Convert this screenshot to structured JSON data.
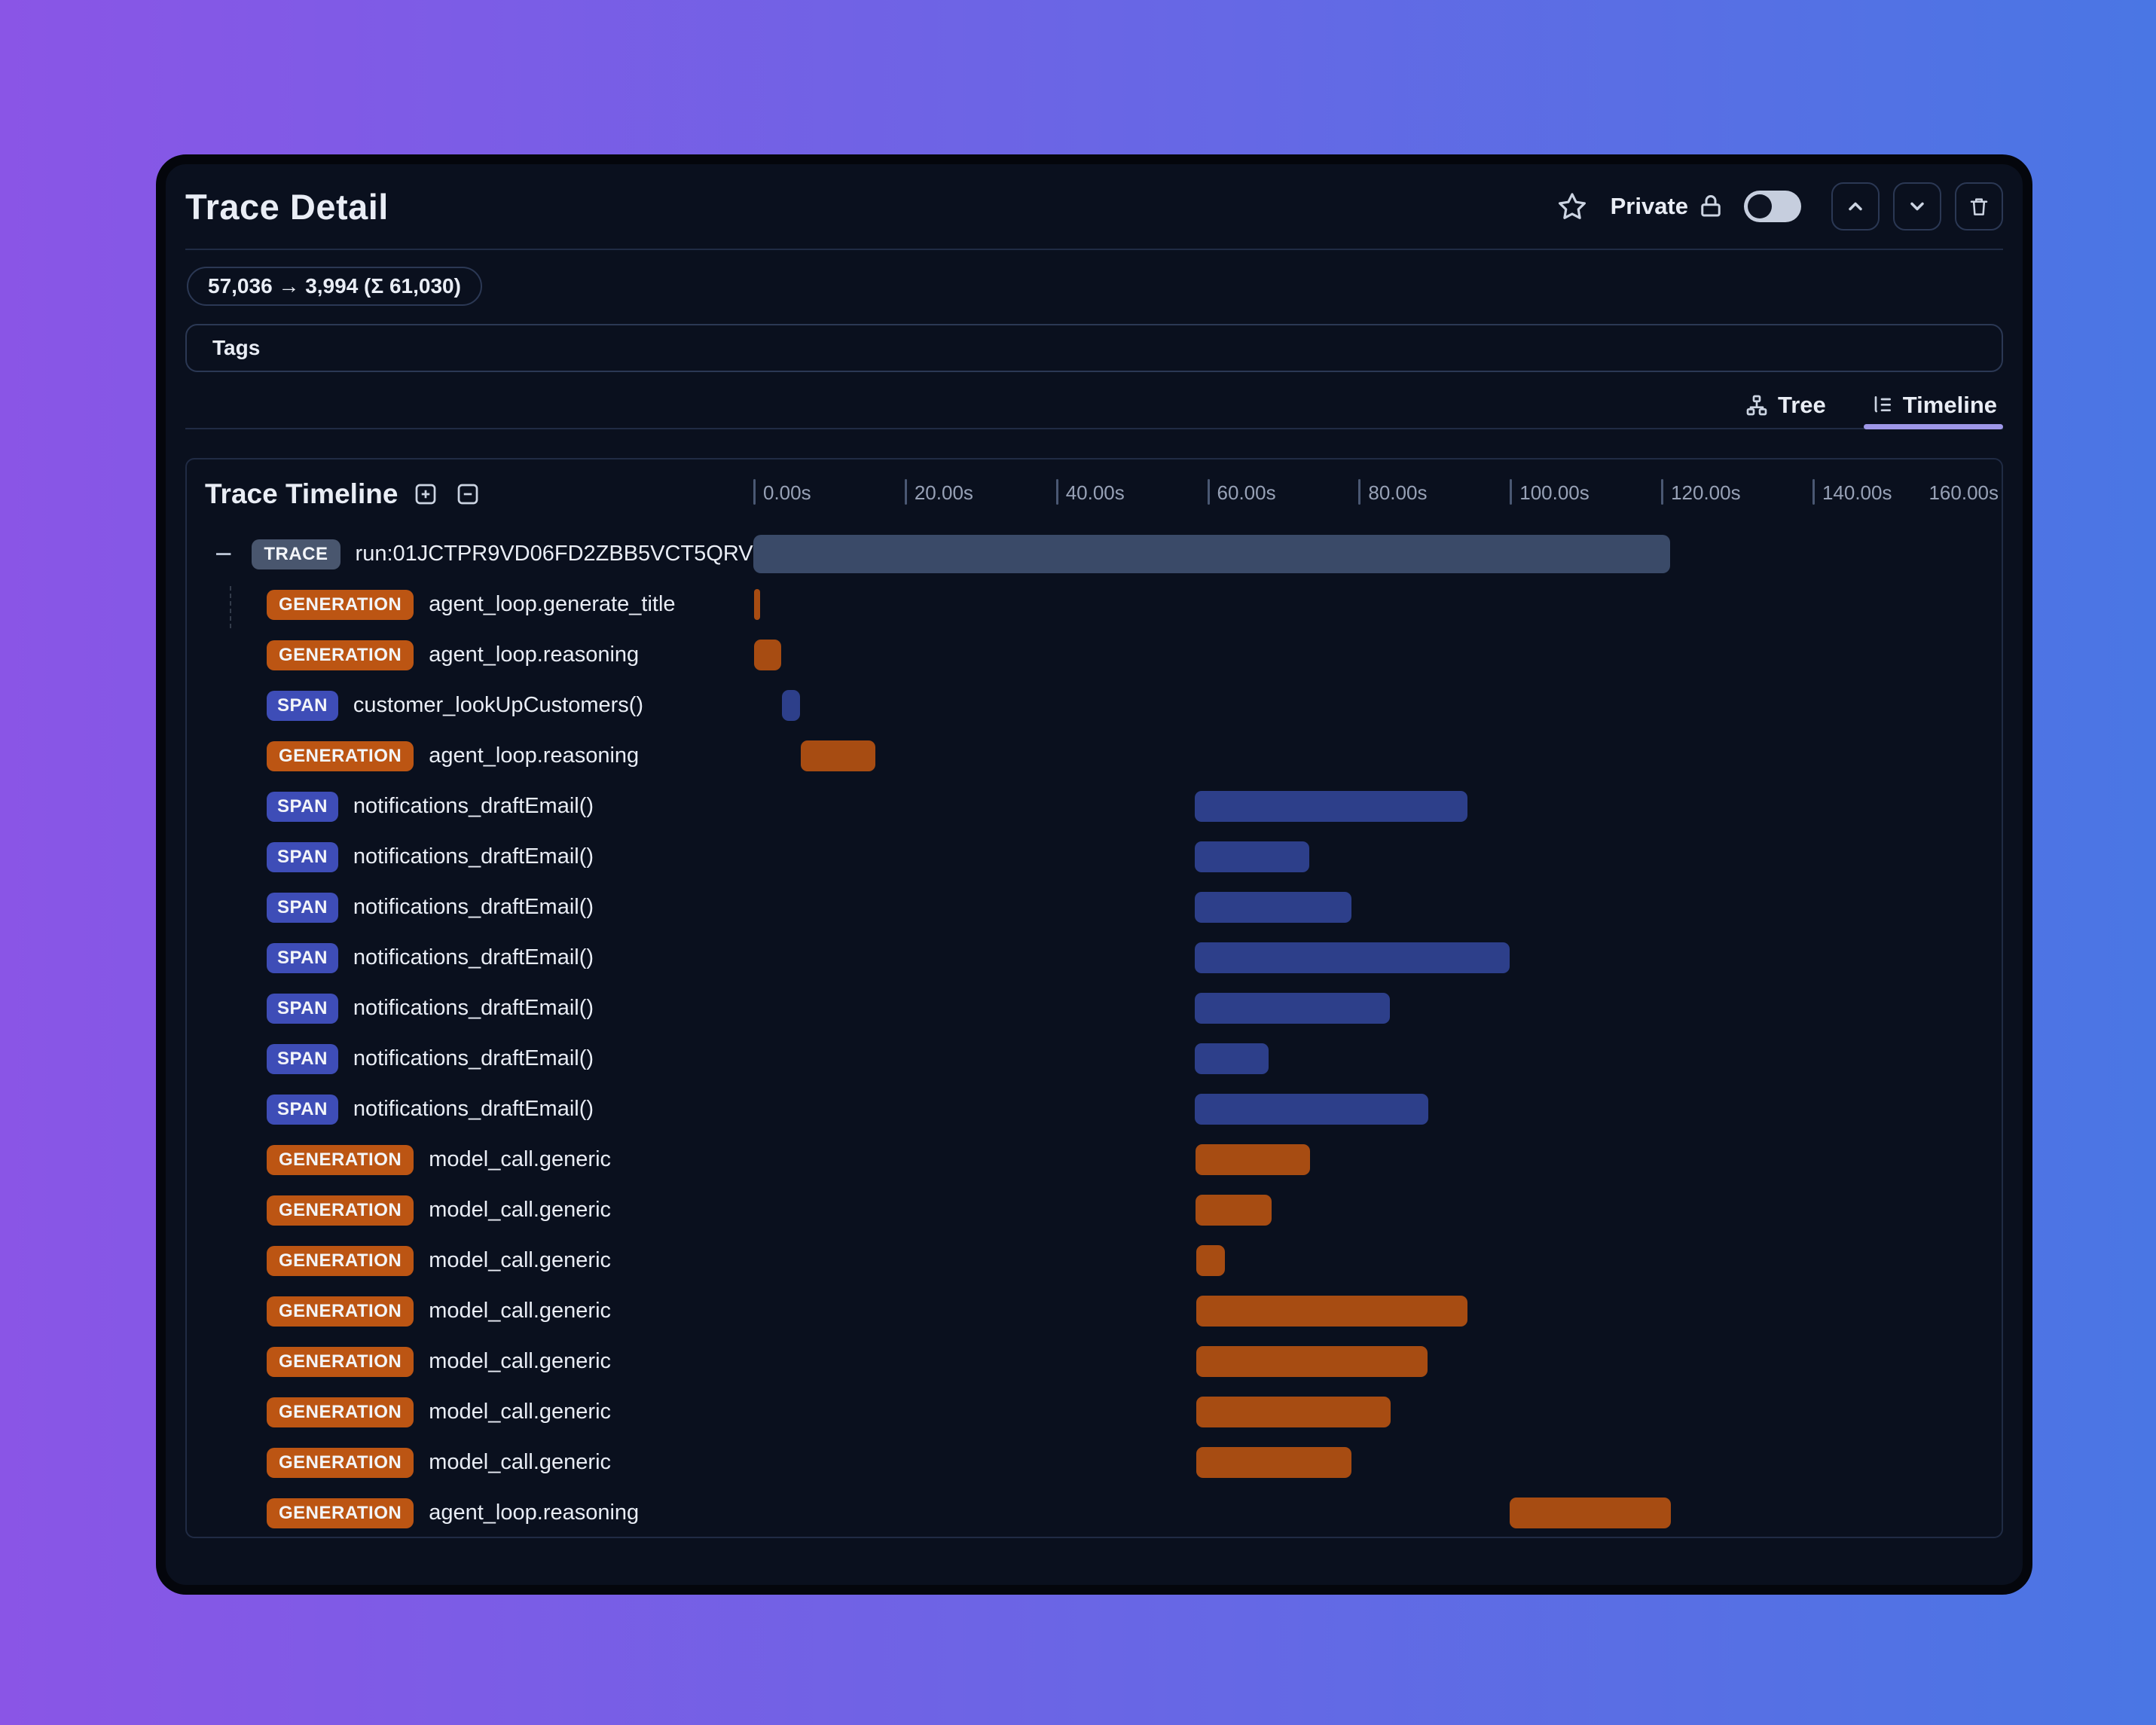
{
  "window": {
    "title": "Trace Detail",
    "header": {
      "privacy_label": "Private",
      "privacy_toggle_state": "off",
      "icons": [
        "star",
        "lock",
        "chevron-up",
        "chevron-down",
        "trash"
      ]
    },
    "token_badge": "57,036 → 3,994 (Σ 61,030)",
    "tags_label": "Tags",
    "view_tabs": [
      {
        "label": "Tree",
        "icon": "org-tree",
        "active": false
      },
      {
        "label": "Timeline",
        "icon": "list-tree",
        "active": true
      }
    ]
  },
  "timeline": {
    "title": "Trace Timeline",
    "controls": [
      "plus-square",
      "minus-square"
    ],
    "axis": {
      "unit": "s",
      "domain": [
        0,
        165
      ],
      "tick_interval": 20,
      "ticks": [
        "0.00s",
        "20.00s",
        "40.00s",
        "60.00s",
        "80.00s",
        "100.00s",
        "120.00s",
        "140.00s",
        "160.00s"
      ]
    },
    "rows": [
      {
        "type": "TRACE",
        "label": "run:01JCTPR9VD06FD2ZBB5VCT5QRV",
        "start": 0,
        "end": 121.2
      },
      {
        "type": "GENERATION",
        "label": "agent_loop.generate_title",
        "start": 0.1,
        "end": 0.9
      },
      {
        "type": "GENERATION",
        "label": "agent_loop.reasoning",
        "start": 0.1,
        "end": 3.7
      },
      {
        "type": "SPAN",
        "label": "customer_lookUpCustomers()",
        "start": 3.8,
        "end": 6.2
      },
      {
        "type": "GENERATION",
        "label": "agent_loop.reasoning",
        "start": 6.3,
        "end": 16.1
      },
      {
        "type": "SPAN",
        "label": "notifications_draftEmail()",
        "start": 58.4,
        "end": 94.4
      },
      {
        "type": "SPAN",
        "label": "notifications_draftEmail()",
        "start": 58.4,
        "end": 73.5
      },
      {
        "type": "SPAN",
        "label": "notifications_draftEmail()",
        "start": 58.4,
        "end": 79.1
      },
      {
        "type": "SPAN",
        "label": "notifications_draftEmail()",
        "start": 58.4,
        "end": 100.0
      },
      {
        "type": "SPAN",
        "label": "notifications_draftEmail()",
        "start": 58.4,
        "end": 84.1
      },
      {
        "type": "SPAN",
        "label": "notifications_draftEmail()",
        "start": 58.4,
        "end": 68.1
      },
      {
        "type": "SPAN",
        "label": "notifications_draftEmail()",
        "start": 58.4,
        "end": 89.2
      },
      {
        "type": "GENERATION",
        "label": "model_call.generic",
        "start": 58.5,
        "end": 73.6
      },
      {
        "type": "GENERATION",
        "label": "model_call.generic",
        "start": 58.5,
        "end": 68.5
      },
      {
        "type": "GENERATION",
        "label": "model_call.generic",
        "start": 58.6,
        "end": 62.3
      },
      {
        "type": "GENERATION",
        "label": "model_call.generic",
        "start": 58.6,
        "end": 94.4
      },
      {
        "type": "GENERATION",
        "label": "model_call.generic",
        "start": 58.6,
        "end": 89.1
      },
      {
        "type": "GENERATION",
        "label": "model_call.generic",
        "start": 58.6,
        "end": 84.2
      },
      {
        "type": "GENERATION",
        "label": "model_call.generic",
        "start": 58.6,
        "end": 79.1
      },
      {
        "type": "GENERATION",
        "label": "agent_loop.reasoning",
        "start": 100.0,
        "end": 121.3
      }
    ]
  },
  "colors": {
    "bg_gradient_left": "#8a55e6",
    "bg_gradient_right": "#4a76e4",
    "window_bg": "#0a101e",
    "window_frame": "#04060c",
    "border_subtle": "#2b3854",
    "divider": "#202b44",
    "text_primary": "#e9edf5",
    "text_muted": "#97a1b6",
    "badge_trace_bg": "#49566e",
    "badge_generation_bg": "#bc5513",
    "badge_span_bg": "#3e4db7",
    "bar_trace": "#3a4a68",
    "bar_generation": "#a74c12",
    "bar_span": "#2d3f8a",
    "tab_active_underline": "#9e97e8",
    "toggle_track": "#c6cede",
    "toggle_knob": "#0d1322"
  }
}
